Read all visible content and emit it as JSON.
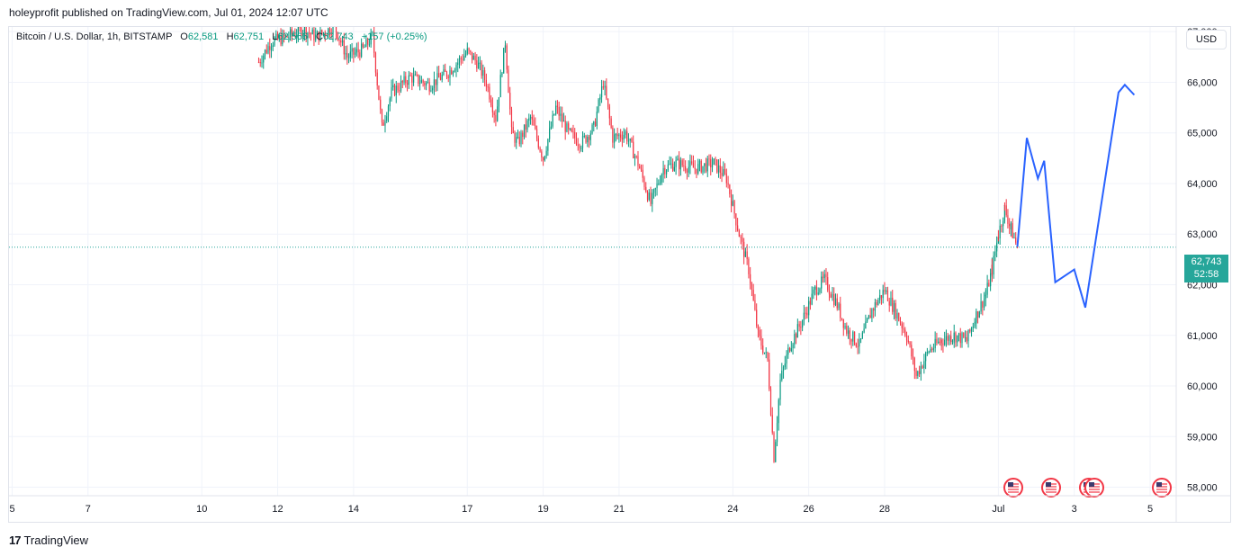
{
  "header": {
    "publish_line": "holeyprofit published on TradingView.com, Jul 01, 2024 12:07 UTC"
  },
  "legend": {
    "symbol": "Bitcoin / U.S. Dollar, 1h, BITSTAMP",
    "open_label": "O",
    "open": "62,581",
    "high_label": "H",
    "high": "62,751",
    "low_label": "L",
    "low": "62,566",
    "close_label": "C",
    "close": "62,743",
    "change": "+157 (+0.25%)"
  },
  "currency_button": "USD",
  "price_label": {
    "price": "62,743",
    "countdown": "52:58"
  },
  "footer": {
    "logo": "17",
    "brand": "TradingView"
  },
  "colors": {
    "up": "#089981",
    "down": "#f23645",
    "projection": "#2962ff",
    "price_line": "#26a69a",
    "grid": "#f0f3fa"
  },
  "event_icons": [
    "us-flag-icon",
    "us-flag-icon",
    "us-flag-icon",
    "us-flag-icon",
    "us-flag-icon"
  ],
  "chart_data": {
    "type": "candlestick",
    "title": "",
    "x_ticks": [
      "5",
      "7",
      "10",
      "12",
      "14",
      "17",
      "19",
      "21",
      "24",
      "26",
      "28",
      "Jul",
      "3",
      "5"
    ],
    "y_ticks": [
      "58,000",
      "59,000",
      "60,000",
      "61,000",
      "62,000",
      "63,000",
      "64,000",
      "65,000",
      "66,000",
      "67,000"
    ],
    "ylim": [
      57850,
      66950
    ],
    "current_price": 62743,
    "price_path": [
      {
        "x": "Jun 11 12:00",
        "y": 66400
      },
      {
        "x": "Jun 11 20:00",
        "y": 66800
      },
      {
        "x": "Jun 12 06:00",
        "y": 66900
      },
      {
        "x": "Jun 12 16:00",
        "y": 67050
      },
      {
        "x": "Jun 13 00:00",
        "y": 66900
      },
      {
        "x": "Jun 13 12:00",
        "y": 67100
      },
      {
        "x": "Jun 13 20:00",
        "y": 66500
      },
      {
        "x": "Jun 14 06:00",
        "y": 66650
      },
      {
        "x": "Jun 14 12:00",
        "y": 66900
      },
      {
        "x": "Jun 14 18:00",
        "y": 65100
      },
      {
        "x": "Jun 15 00:00",
        "y": 65800
      },
      {
        "x": "Jun 15 12:00",
        "y": 66100
      },
      {
        "x": "Jun 16 00:00",
        "y": 65950
      },
      {
        "x": "Jun 16 12:00",
        "y": 66200
      },
      {
        "x": "Jun 17 00:00",
        "y": 66600
      },
      {
        "x": "Jun 17 06:00",
        "y": 66400
      },
      {
        "x": "Jun 17 12:00",
        "y": 66000
      },
      {
        "x": "Jun 17 18:00",
        "y": 65300
      },
      {
        "x": "Jun 18 00:00",
        "y": 66800
      },
      {
        "x": "Jun 18 04:00",
        "y": 65000
      },
      {
        "x": "Jun 18 08:00",
        "y": 64800
      },
      {
        "x": "Jun 18 16:00",
        "y": 65300
      },
      {
        "x": "Jun 19 00:00",
        "y": 64500
      },
      {
        "x": "Jun 19 08:00",
        "y": 65500
      },
      {
        "x": "Jun 19 16:00",
        "y": 65000
      },
      {
        "x": "Jun 20 00:00",
        "y": 64800
      },
      {
        "x": "Jun 20 08:00",
        "y": 65100
      },
      {
        "x": "Jun 20 14:00",
        "y": 66000
      },
      {
        "x": "Jun 20 20:00",
        "y": 64900
      },
      {
        "x": "Jun 21 04:00",
        "y": 65000
      },
      {
        "x": "Jun 21 12:00",
        "y": 64400
      },
      {
        "x": "Jun 21 20:00",
        "y": 63600
      },
      {
        "x": "Jun 22 04:00",
        "y": 64300
      },
      {
        "x": "Jun 22 12:00",
        "y": 64400
      },
      {
        "x": "Jun 23 00:00",
        "y": 64300
      },
      {
        "x": "Jun 23 12:00",
        "y": 64400
      },
      {
        "x": "Jun 23 20:00",
        "y": 64100
      },
      {
        "x": "Jun 24 04:00",
        "y": 63000
      },
      {
        "x": "Jun 24 10:00",
        "y": 62300
      },
      {
        "x": "Jun 24 16:00",
        "y": 61000
      },
      {
        "x": "Jun 24 22:00",
        "y": 60500
      },
      {
        "x": "Jun 25 02:00",
        "y": 58600
      },
      {
        "x": "Jun 25 06:00",
        "y": 60100
      },
      {
        "x": "Jun 25 12:00",
        "y": 60800
      },
      {
        "x": "Jun 25 20:00",
        "y": 61300
      },
      {
        "x": "Jun 26 04:00",
        "y": 61900
      },
      {
        "x": "Jun 26 10:00",
        "y": 62100
      },
      {
        "x": "Jun 26 18:00",
        "y": 61600
      },
      {
        "x": "Jun 27 00:00",
        "y": 61100
      },
      {
        "x": "Jun 27 08:00",
        "y": 60800
      },
      {
        "x": "Jun 27 16:00",
        "y": 61500
      },
      {
        "x": "Jun 28 00:00",
        "y": 61900
      },
      {
        "x": "Jun 28 08:00",
        "y": 61400
      },
      {
        "x": "Jun 28 14:00",
        "y": 61000
      },
      {
        "x": "Jun 28 20:00",
        "y": 60200
      },
      {
        "x": "Jun 29 04:00",
        "y": 60700
      },
      {
        "x": "Jun 29 12:00",
        "y": 60900
      },
      {
        "x": "Jun 29 20:00",
        "y": 61000
      },
      {
        "x": "Jun 30 04:00",
        "y": 60900
      },
      {
        "x": "Jun 30 10:00",
        "y": 61400
      },
      {
        "x": "Jun 30 16:00",
        "y": 61800
      },
      {
        "x": "Jun 30 20:00",
        "y": 62300
      },
      {
        "x": "Jul 01 00:00",
        "y": 63000
      },
      {
        "x": "Jul 01 04:00",
        "y": 63500
      },
      {
        "x": "Jul 01 08:00",
        "y": 63100
      },
      {
        "x": "Jul 01 12:00",
        "y": 62743
      }
    ],
    "projection": [
      {
        "x": "Jul 01 12:00",
        "y": 62750
      },
      {
        "x": "Jul 01 18:00",
        "y": 64900
      },
      {
        "x": "Jul 02 01:00",
        "y": 64100
      },
      {
        "x": "Jul 02 05:00",
        "y": 64450
      },
      {
        "x": "Jul 02 12:00",
        "y": 62050
      },
      {
        "x": "Jul 03 00:00",
        "y": 62300
      },
      {
        "x": "Jul 03 07:00",
        "y": 61550
      },
      {
        "x": "Jul 04 04:00",
        "y": 65800
      },
      {
        "x": "Jul 04 08:00",
        "y": 65950
      },
      {
        "x": "Jul 04 14:00",
        "y": 65750
      }
    ]
  }
}
